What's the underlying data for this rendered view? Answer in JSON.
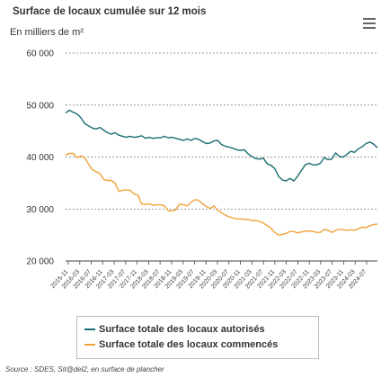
{
  "chart_data": {
    "type": "line",
    "title": "Surface de locaux cumulée sur 12 mois",
    "subtitle": "En milliers de m²",
    "ylim": [
      20000,
      60000
    ],
    "y_ticks": [
      "60 000",
      "50 000",
      "40 000",
      "30 000",
      "20 000"
    ],
    "x_tick_labels": [
      "2015-11",
      "2016-03",
      "2016-07",
      "2016-11",
      "2017-03",
      "2017-07",
      "2017-11",
      "2018-03",
      "2018-07",
      "2018-11",
      "2019-03",
      "2019-07",
      "2019-11",
      "2020-03",
      "2020-07",
      "2020-11",
      "2021-03",
      "2021-07",
      "2021-11",
      "2022-03",
      "2022-07",
      "2022-11",
      "2023-03",
      "2023-07",
      "2023-11",
      "2024-03",
      "2024-07"
    ],
    "series": [
      {
        "name": "Surface totale des locaux autorisés",
        "color": "#1a6d73",
        "values": [
          48500,
          49000,
          48600,
          48300,
          47600,
          46500,
          46000,
          45600,
          45400,
          45700,
          45200,
          44700,
          44400,
          44700,
          44200,
          44000,
          43800,
          44000,
          43800,
          43900,
          44100,
          43600,
          43800,
          43600,
          43700,
          43700,
          44000,
          43700,
          43800,
          43600,
          43400,
          43200,
          43500,
          43200,
          43600,
          43400,
          43000,
          42600,
          42700,
          43100,
          43200,
          42400,
          42100,
          41900,
          41700,
          41400,
          41300,
          41400,
          40600,
          40100,
          39700,
          39600,
          39800,
          38700,
          38400,
          37800,
          36300,
          35600,
          35400,
          35900,
          35400,
          36300,
          37400,
          38500,
          38800,
          38500,
          38500,
          38800,
          39900,
          39500,
          39600,
          40800,
          40100,
          40000,
          40500,
          41100,
          40900,
          41600,
          42000,
          42600,
          42900,
          42500,
          41800
        ]
      },
      {
        "name": "Surface totale des locaux commencés",
        "color": "#f0a23a",
        "values": [
          40400,
          40700,
          40700,
          39900,
          40200,
          39900,
          38700,
          37600,
          37200,
          36800,
          35700,
          35500,
          35500,
          35000,
          33400,
          33600,
          33700,
          33600,
          32900,
          32700,
          31000,
          30900,
          31000,
          30700,
          30800,
          30800,
          30600,
          29700,
          29600,
          29900,
          31000,
          30800,
          30600,
          31300,
          31800,
          31700,
          31000,
          30500,
          30100,
          30600,
          29800,
          29300,
          28800,
          28500,
          28300,
          28100,
          28100,
          28000,
          28000,
          27800,
          27800,
          27600,
          27300,
          26800,
          26300,
          25500,
          25000,
          25100,
          25300,
          25700,
          25700,
          25400,
          25600,
          25700,
          25800,
          25700,
          25500,
          25500,
          26100,
          25900,
          25500,
          25900,
          26100,
          26000,
          25900,
          26000,
          25900,
          26200,
          26500,
          26400,
          26800,
          27000,
          27100
        ]
      }
    ],
    "grid": true,
    "legend_position": "bottom-center"
  },
  "source": "Source : SDES, Sit@del2, en surface de plancher",
  "menu_icon": "hamburger-menu-icon"
}
